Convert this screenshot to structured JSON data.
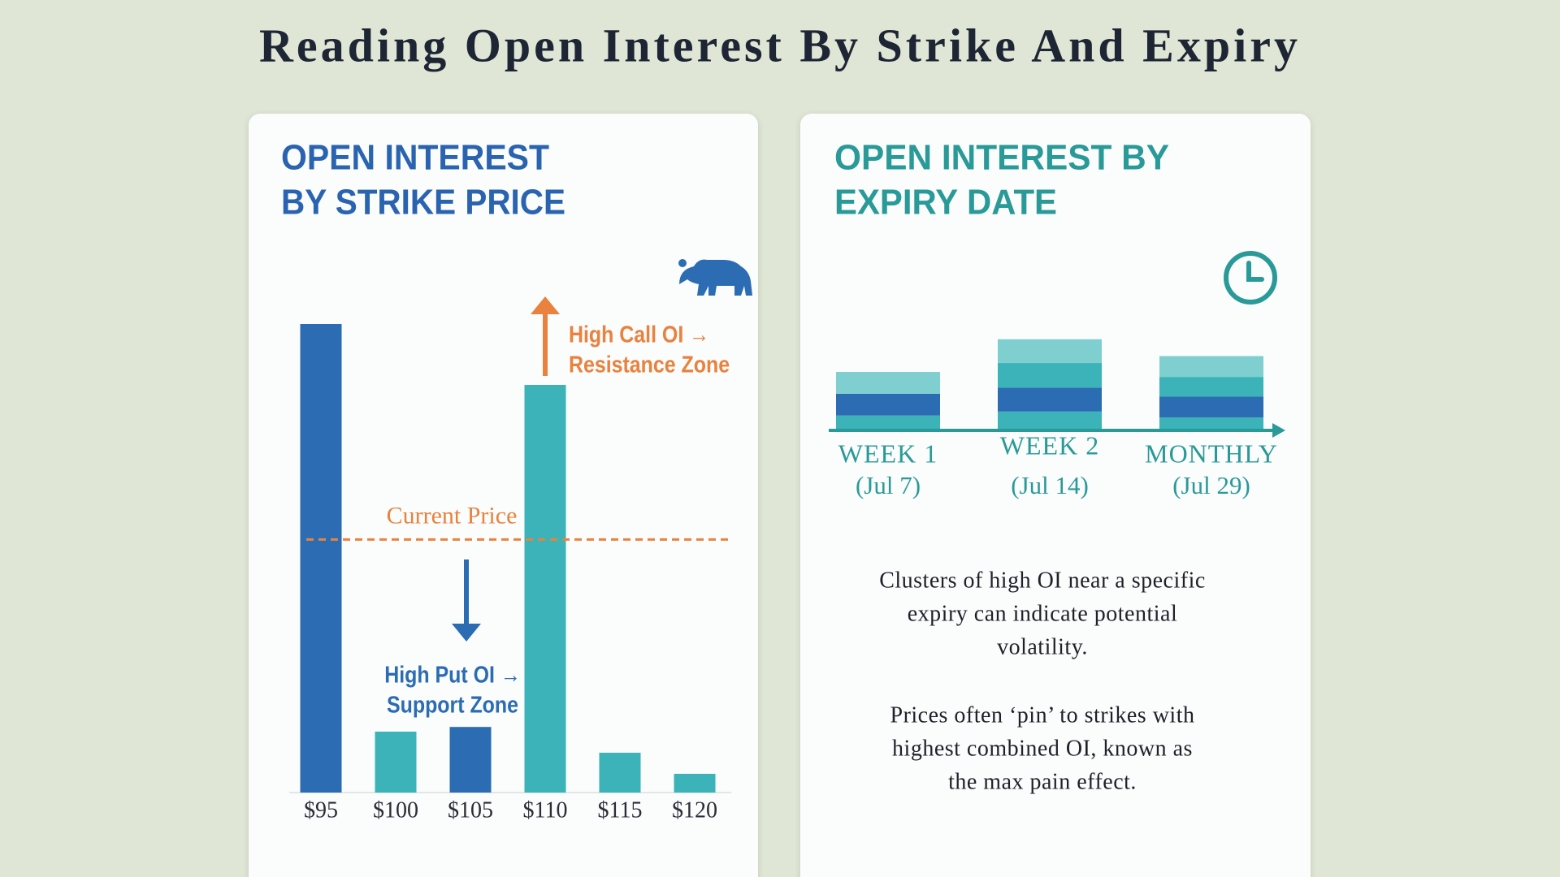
{
  "title": "Reading Open Interest By Strike And Expiry",
  "chart_data": [
    {
      "type": "bar",
      "title": [
        "OPEN INTEREST",
        "BY STRIKE PRICE"
      ],
      "categories": [
        "$95",
        "$100",
        "$105",
        "$110",
        "$115",
        "$120"
      ],
      "values": [
        100,
        13,
        14,
        87,
        8.5,
        4
      ],
      "colors": [
        "#2b6cb3",
        "#3bb3b8",
        "#2b6cb3",
        "#3bb3b8",
        "#3bb3b8",
        "#3bb3b8"
      ],
      "ylim": [
        0,
        100
      ],
      "reference_line": {
        "label": "Current Price",
        "value": 54,
        "color": "#e8823e"
      },
      "annotations": [
        {
          "lines": [
            "High Call OI →",
            "Resistance Zone"
          ],
          "color": "#e8823e",
          "direction": "up"
        },
        {
          "lines": [
            "High Put OI →",
            "Support Zone"
          ],
          "color": "#2b6cb3",
          "direction": "down"
        }
      ]
    },
    {
      "type": "stacked_bar",
      "title": [
        "OPEN INTEREST BY",
        "EXPIRY DATE"
      ],
      "categories": [
        "WEEK 1",
        "WEEK 2",
        "MONTHLY"
      ],
      "dates": [
        "(Jul 7)",
        "(Jul 14)",
        "(Jul 29)"
      ],
      "series": [
        {
          "color": "#3bb3b8",
          "values": [
            15,
            19,
            13
          ]
        },
        {
          "color": "#2b6cb3",
          "values": [
            22,
            24,
            21
          ]
        },
        {
          "color": "#3bb3b8",
          "values": [
            0,
            25,
            20
          ]
        },
        {
          "color": "#7fcfd0",
          "values": [
            22,
            24,
            21
          ]
        }
      ],
      "ylim": [
        0,
        100
      ],
      "notes": [
        [
          "Clusters of high OI near a specific",
          "expiry can indicate potential",
          "volatility."
        ],
        [
          "Prices often ‘pin’ to strikes with",
          "highest combined OI, known as",
          "the max pain effect."
        ]
      ]
    }
  ]
}
